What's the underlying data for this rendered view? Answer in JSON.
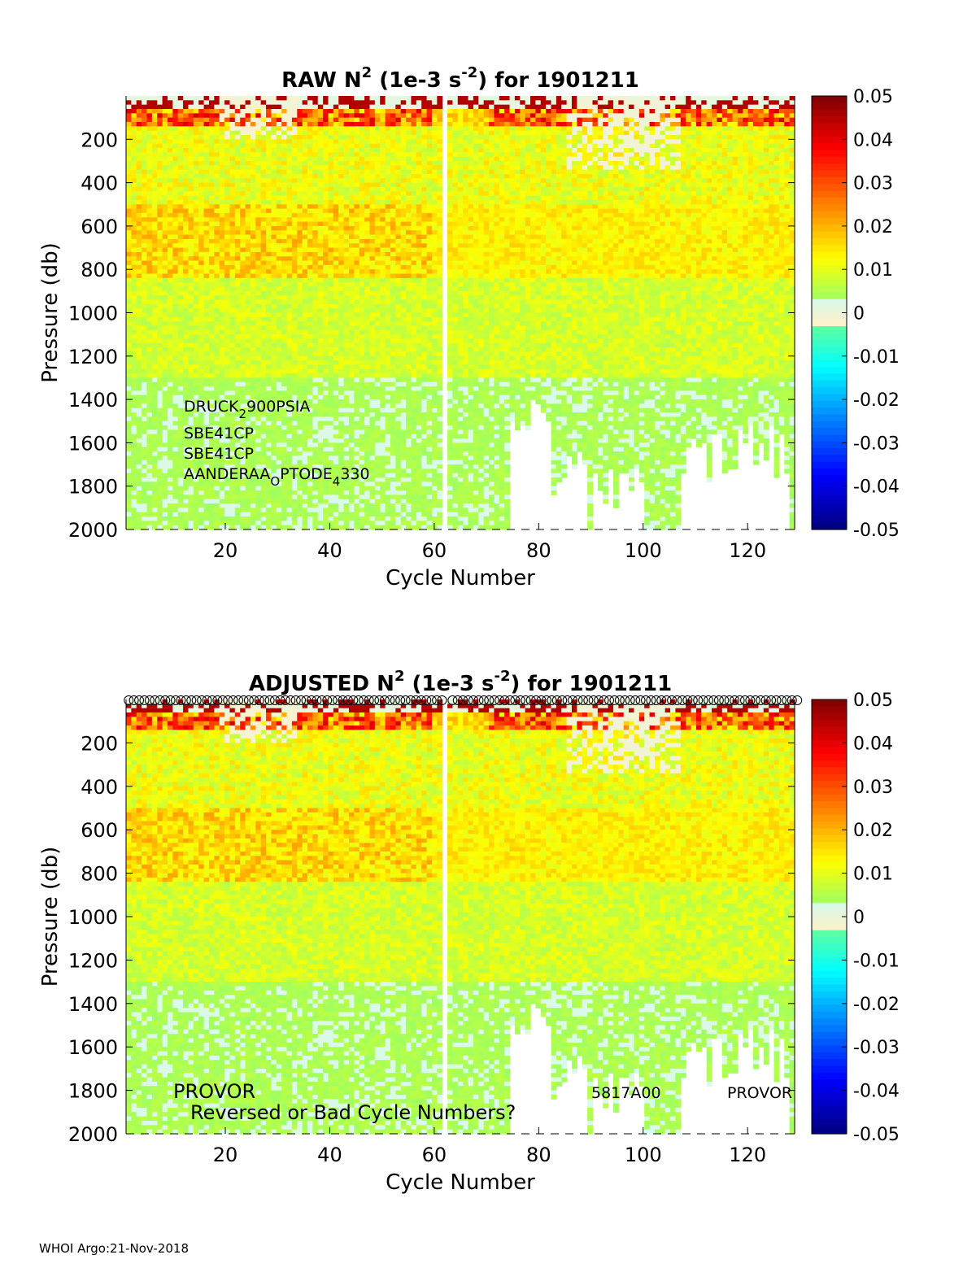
{
  "footer": "WHOI Argo:21-Nov-2018",
  "colorbar": {
    "ticks": [
      "0.05",
      "0.04",
      "0.03",
      "0.02",
      "0.01",
      "0",
      "-0.01",
      "-0.02",
      "-0.03",
      "-0.04",
      "-0.05"
    ],
    "range": [
      -0.05,
      0.05
    ]
  },
  "chart_data": [
    {
      "type": "heatmap",
      "title_parts": {
        "pre": "RAW N",
        "sup1": "2",
        "mid": " (1e-3 s",
        "sup2": "-2",
        "post": ") for 1901211"
      },
      "xlabel": "Cycle Number",
      "ylabel": "Pressure (db)",
      "xlim": [
        1,
        129
      ],
      "ylim": [
        2000,
        0
      ],
      "xticks": [
        "20",
        "40",
        "60",
        "80",
        "100",
        "120"
      ],
      "yticks": [
        "200",
        "400",
        "600",
        "800",
        "1000",
        "1200",
        "1400",
        "1600",
        "1800",
        "2000"
      ],
      "sensor_labels": [
        {
          "main": "DRUCK",
          "sub": "2",
          "rest": "900PSIA"
        },
        {
          "main": "SBE41CP"
        },
        {
          "main": "SBE41CP"
        },
        {
          "main": "AANDERAA",
          "sub": "O",
          "rest": "PTODE",
          "sub2": "4",
          "rest2": "330"
        }
      ],
      "missing_cycle": 62
    },
    {
      "type": "heatmap",
      "title_parts": {
        "pre": "ADJUSTED N",
        "sup1": "2",
        "mid": " (1e-3 s",
        "sup2": "-2",
        "post": ") for 1901211"
      },
      "xlabel": "Cycle Number",
      "ylabel": "Pressure (db)",
      "xlim": [
        1,
        129
      ],
      "ylim": [
        2000,
        0
      ],
      "xticks": [
        "20",
        "40",
        "60",
        "80",
        "100",
        "120"
      ],
      "yticks": [
        "200",
        "400",
        "600",
        "800",
        "1000",
        "1200",
        "1400",
        "1600",
        "1800",
        "2000"
      ],
      "annotations": {
        "platform_left": "PROVOR",
        "warning": "Reversed or Bad Cycle Numbers?",
        "serial": "5817A00",
        "platform_right": "PROVOR"
      },
      "missing_cycle": 62
    }
  ]
}
